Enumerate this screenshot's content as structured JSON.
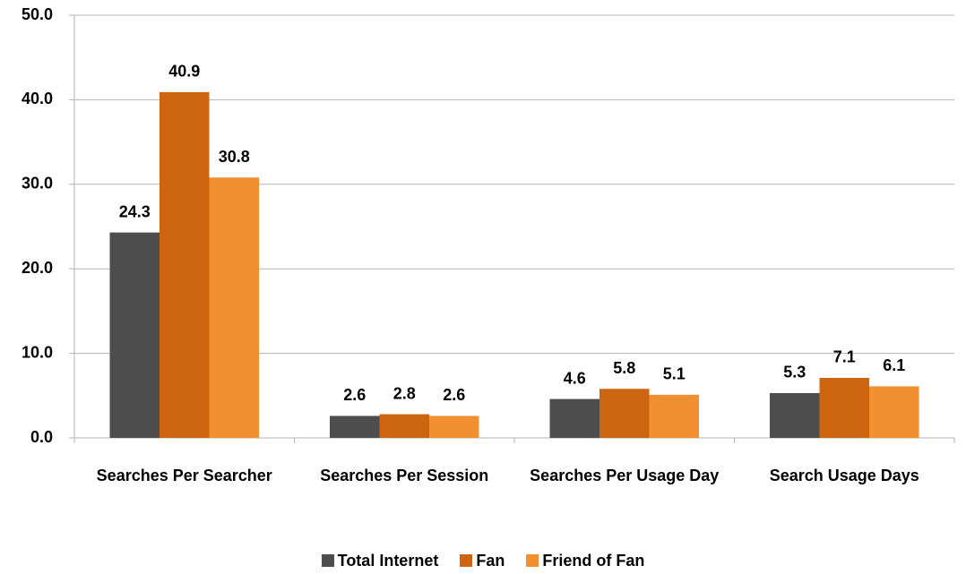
{
  "chart_data": {
    "type": "bar",
    "categories": [
      "Searches Per Searcher",
      "Searches Per Session",
      "Searches Per Usage Day",
      "Search Usage Days"
    ],
    "series": [
      {
        "name": "Total Internet",
        "color": "#4d4d4d",
        "values": [
          24.3,
          2.6,
          4.6,
          5.3
        ]
      },
      {
        "name": "Fan",
        "color": "#cc6410",
        "values": [
          40.9,
          2.8,
          5.8,
          7.1
        ]
      },
      {
        "name": "Friend of Fan",
        "color": "#f28f31",
        "values": [
          30.8,
          2.6,
          5.1,
          6.1
        ]
      }
    ],
    "ylim": [
      0,
      50
    ],
    "yticks": [
      {
        "value": 0,
        "label": "0.0"
      },
      {
        "value": 10,
        "label": "10.0"
      },
      {
        "value": 20,
        "label": "20.0"
      },
      {
        "value": 30,
        "label": "30.0"
      },
      {
        "value": 40,
        "label": "40.0"
      },
      {
        "value": 50,
        "label": "50.0"
      }
    ],
    "grid": true,
    "legend": "bottom"
  }
}
